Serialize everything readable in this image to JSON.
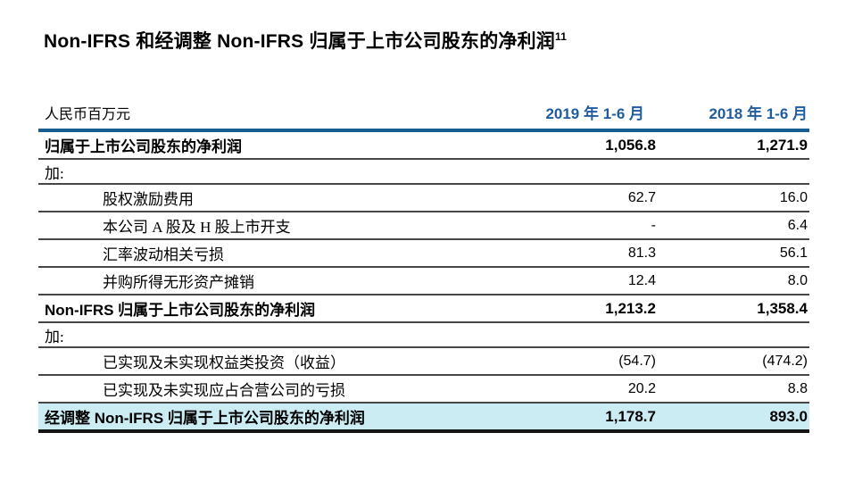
{
  "title": {
    "text": "Non-IFRS 和经调整 Non-IFRS 归属于上市公司股东的净利润",
    "footnote_marker": "11"
  },
  "table": {
    "unit_label": "人民币百万元",
    "columns": [
      "2019 年 1-6 月",
      "2018 年 1-6 月"
    ],
    "rows": [
      {
        "label": "归属于上市公司股东的净利润",
        "v2019": "1,056.8",
        "v2018": "1,271.9",
        "style": "bold"
      },
      {
        "label": "加:",
        "v2019": "",
        "v2018": "",
        "style": "section"
      },
      {
        "label": "股权激励费用",
        "v2019": "62.7",
        "v2018": "16.0",
        "style": "indent"
      },
      {
        "label": "本公司 A 股及 H 股上市开支",
        "v2019": "-",
        "v2018": "6.4",
        "style": "indent"
      },
      {
        "label": "汇率波动相关亏损",
        "v2019": "81.3",
        "v2018": "56.1",
        "style": "indent"
      },
      {
        "label": "并购所得无形资产摊销",
        "v2019": "12.4",
        "v2018": "8.0",
        "style": "indent"
      },
      {
        "label": "Non-IFRS 归属于上市公司股东的净利润",
        "v2019": "1,213.2",
        "v2018": "1,358.4",
        "style": "bold"
      },
      {
        "label": "加:",
        "v2019": "",
        "v2018": "",
        "style": "section"
      },
      {
        "label": "已实现及未实现权益类投资（收益）",
        "v2019": "(54.7)",
        "v2018": "(474.2)",
        "style": "indent"
      },
      {
        "label": "已实现及未实现应占合营公司的亏损",
        "v2019": "20.2",
        "v2018": "8.8",
        "style": "indent"
      },
      {
        "label": "经调整 Non-IFRS 归属于上市公司股东的净利润",
        "v2019": "1,178.7",
        "v2018": "893.0",
        "style": "total"
      }
    ],
    "colors": {
      "header_text_blue": "#1F5C9E",
      "header_rule_blue": "#175D91",
      "row_divider_gray": "#474747",
      "total_row_background": "#CBECF3",
      "bottom_rule_black": "#141414"
    }
  }
}
